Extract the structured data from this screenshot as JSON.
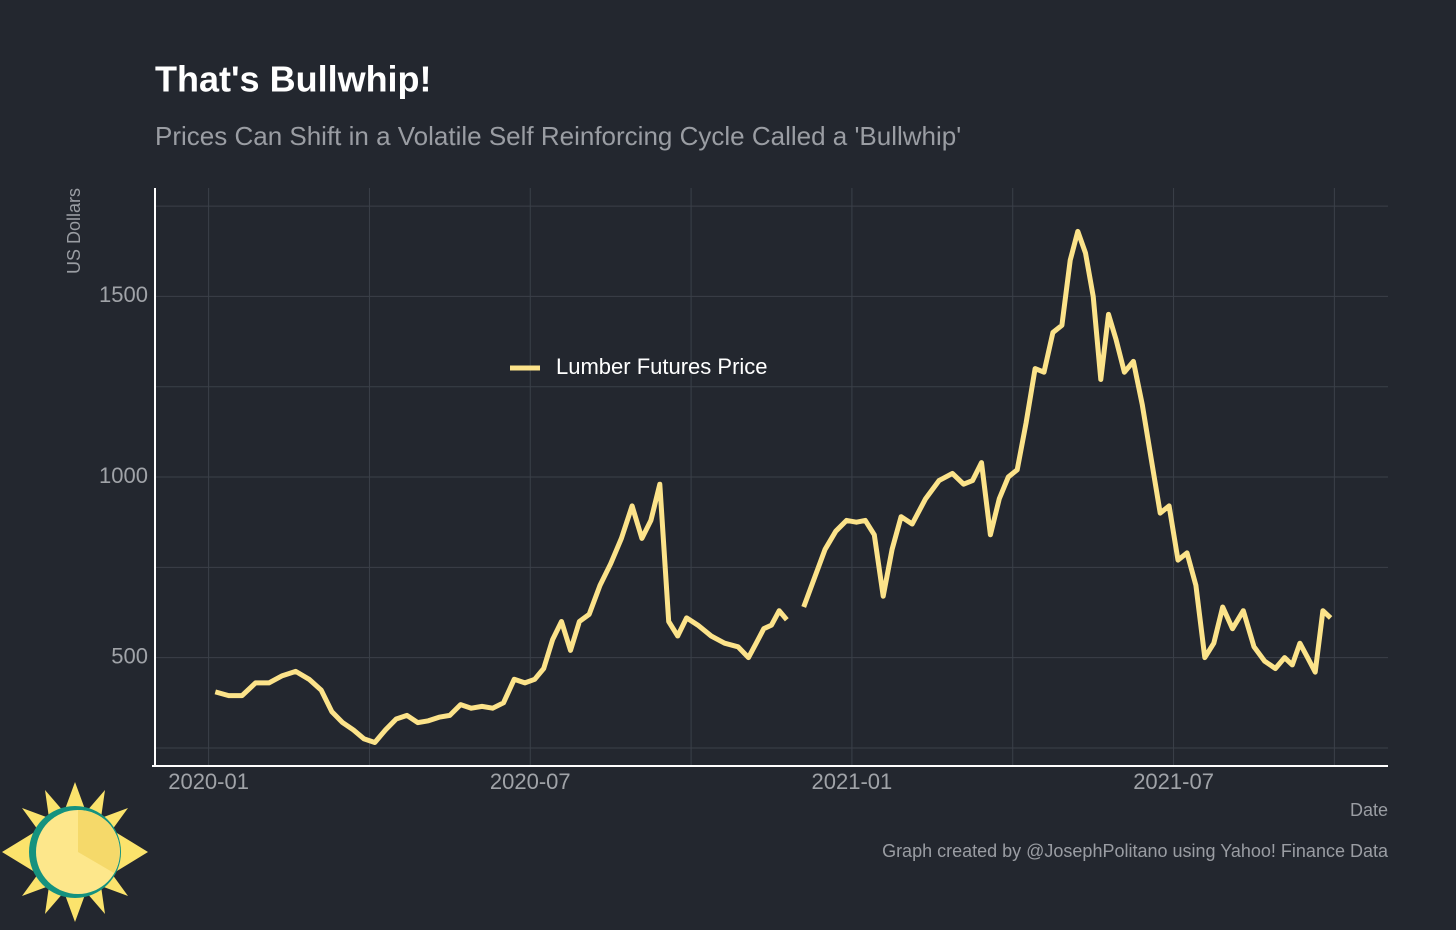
{
  "chart_data": {
    "type": "line",
    "title": "That's Bullwhip!",
    "subtitle": "Prices Can Shift in a Volatile Self Reinforcing Cycle Called a 'Bullwhip'",
    "x_label": "Date",
    "y_label": "US Dollars",
    "caption": "Graph created by @JosephPolitano using Yahoo! Finance Data",
    "xlim": [
      "2019-12",
      "2021-11"
    ],
    "xticks": [
      "2020-01",
      "2020-07",
      "2021-01",
      "2021-07"
    ],
    "minor_xticks": [
      "2020-04",
      "2020-10",
      "2021-04",
      "2021-10"
    ],
    "ylim": [
      200,
      1800
    ],
    "yticks": [
      500,
      1000,
      1500
    ],
    "minor_yticks": [
      250,
      750,
      1250,
      1750
    ],
    "grid": true,
    "legend": "upper left",
    "x": [
      "2020-01",
      "2020-01",
      "2020-01",
      "2020-01",
      "2020-02",
      "2020-02",
      "2020-02",
      "2020-02",
      "2020-03",
      "2020-03",
      "2020-03",
      "2020-03",
      "2020-03",
      "2020-04",
      "2020-04",
      "2020-04",
      "2020-04",
      "2020-04",
      "2020-05",
      "2020-05",
      "2020-05",
      "2020-05",
      "2020-05",
      "2020-06",
      "2020-06",
      "2020-06",
      "2020-06",
      "2020-06",
      "2020-07",
      "2020-07",
      "2020-07",
      "2020-07",
      "2020-07",
      "2020-07",
      "2020-08",
      "2020-08",
      "2020-08",
      "2020-08",
      "2020-08",
      "2020-09",
      "2020-09",
      "2020-09",
      "2020-09",
      "2020-09",
      "2020-09",
      "2020-10",
      "2020-10",
      "2020-10",
      "2020-10",
      "2020-11",
      "2020-11",
      "2020-11",
      "2020-11",
      "2020-11",
      "2020-11",
      "2020-11",
      "2020-12",
      "2020-12",
      "2020-12",
      "2020-12",
      "2020-12",
      "2021-01",
      "2021-01",
      "2021-01",
      "2021-01",
      "2021-01",
      "2021-01",
      "2021-02",
      "2021-02",
      "2021-02",
      "2021-02",
      "2021-03",
      "2021-03",
      "2021-03",
      "2021-03",
      "2021-03",
      "2021-03",
      "2021-04",
      "2021-04",
      "2021-04",
      "2021-04",
      "2021-04",
      "2021-04",
      "2021-05",
      "2021-05",
      "2021-05",
      "2021-05",
      "2021-05",
      "2021-05",
      "2021-05",
      "2021-06",
      "2021-06",
      "2021-06",
      "2021-06",
      "2021-06",
      "2021-06",
      "2021-07",
      "2021-07",
      "2021-07",
      "2021-07",
      "2021-07",
      "2021-07",
      "2021-08",
      "2021-08",
      "2021-08",
      "2021-08",
      "2021-08",
      "2021-09",
      "2021-09",
      "2021-09",
      "2021-09",
      "2021-09",
      "2021-09",
      "2021-09"
    ],
    "series": [
      {
        "name": "Lumber Futures Price",
        "color": "#fce38a",
        "values": [
          405,
          395,
          395,
          430,
          430,
          450,
          462,
          440,
          410,
          350,
          320,
          300,
          275,
          265,
          300,
          330,
          340,
          320,
          325,
          335,
          340,
          370,
          360,
          365,
          360,
          375,
          440,
          430,
          440,
          470,
          550,
          600,
          520,
          600,
          620,
          700,
          760,
          830,
          920,
          830,
          880,
          980,
          600,
          560,
          610,
          590,
          560,
          540,
          530,
          500,
          540,
          580,
          590,
          630,
          605,
          null,
          640,
          720,
          800,
          850,
          880,
          875,
          880,
          840,
          670,
          800,
          890,
          870,
          940,
          990,
          1010,
          980,
          990,
          1040,
          840,
          940,
          1000,
          1020,
          1150,
          1300,
          1290,
          1400,
          1420,
          1600,
          1680,
          1620,
          1500,
          1270,
          1450,
          1380,
          1290,
          1320,
          1200,
          1050,
          900,
          920,
          770,
          790,
          700,
          500,
          540,
          640,
          580,
          630,
          530,
          490,
          470,
          500,
          480,
          540,
          500,
          460,
          630,
          610
        ]
      }
    ]
  }
}
